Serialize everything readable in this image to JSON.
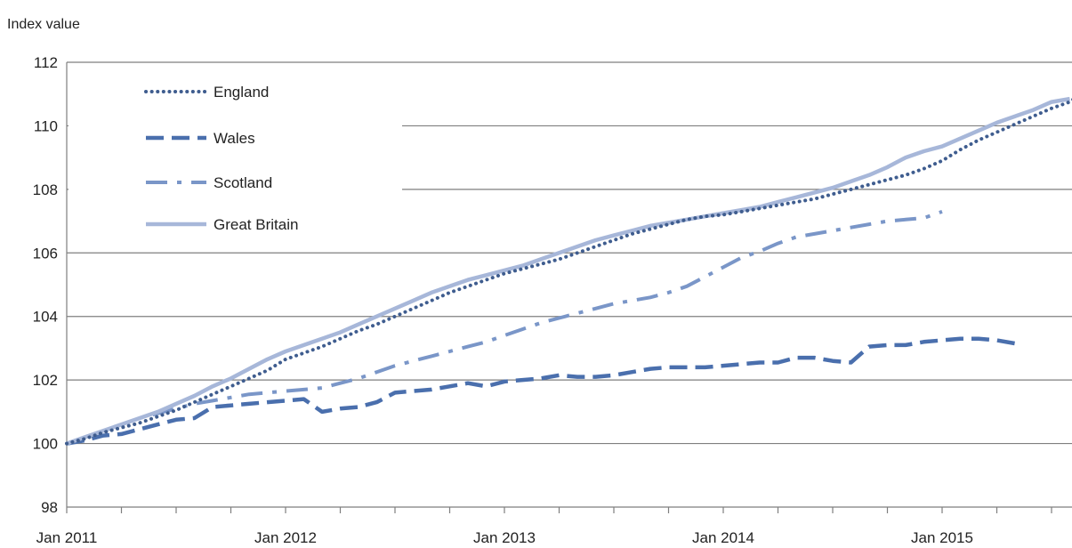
{
  "chart_data": {
    "type": "line",
    "title": "",
    "xlabel": "",
    "ylabel": "Index value",
    "ylim": [
      98,
      112
    ],
    "yticks": [
      98,
      100,
      102,
      104,
      106,
      108,
      110,
      112
    ],
    "x_tick_labels": [
      {
        "label": "Jan 2011",
        "month_index": 0
      },
      {
        "label": "Jan 2012",
        "month_index": 12
      },
      {
        "label": "Jan 2013",
        "month_index": 24
      },
      {
        "label": "Jan 2014",
        "month_index": 36
      },
      {
        "label": "Jan 2015",
        "month_index": 48
      }
    ],
    "x_range_months": [
      0,
      55
    ],
    "grid": "horizontal",
    "legend_position": "top-left",
    "series": [
      {
        "name": "England",
        "style": "dotted",
        "color": "#3f5d8f",
        "values": [
          100.0,
          100.15,
          100.35,
          100.5,
          100.65,
          100.85,
          101.05,
          101.3,
          101.55,
          101.8,
          102.05,
          102.3,
          102.65,
          102.85,
          103.05,
          103.3,
          103.55,
          103.75,
          104.0,
          104.25,
          104.5,
          104.75,
          104.95,
          105.15,
          105.35,
          105.5,
          105.65,
          105.8,
          106.0,
          106.2,
          106.4,
          106.6,
          106.75,
          106.9,
          107.05,
          107.15,
          107.2,
          107.3,
          107.4,
          107.5,
          107.6,
          107.7,
          107.85,
          108.0,
          108.15,
          108.3,
          108.45,
          108.65,
          108.9,
          109.25,
          109.55,
          109.8,
          110.05,
          110.3,
          110.55,
          110.75,
          111.2
        ]
      },
      {
        "name": "Wales",
        "style": "dashed",
        "color": "#4a6fad",
        "values": [
          100.0,
          100.1,
          100.25,
          100.3,
          100.45,
          100.6,
          100.75,
          100.8,
          101.15,
          101.2,
          101.25,
          101.3,
          101.35,
          101.4,
          101.0,
          101.1,
          101.15,
          101.3,
          101.6,
          101.65,
          101.7,
          101.8,
          101.9,
          101.8,
          101.95,
          102.0,
          102.05,
          102.15,
          102.1,
          102.1,
          102.15,
          102.25,
          102.35,
          102.4,
          102.4,
          102.4,
          102.45,
          102.5,
          102.55,
          102.55,
          102.7,
          102.7,
          102.6,
          102.55,
          103.05,
          103.1,
          103.1,
          103.2,
          103.25,
          103.3,
          103.3,
          103.25,
          103.15
        ]
      },
      {
        "name": "Scotland",
        "style": "dash-dot",
        "color": "#7a96c8",
        "values": [
          100.0,
          100.2,
          100.4,
          100.6,
          100.8,
          100.95,
          101.1,
          101.25,
          101.35,
          101.45,
          101.55,
          101.6,
          101.65,
          101.7,
          101.75,
          101.9,
          102.05,
          102.25,
          102.45,
          102.6,
          102.75,
          102.9,
          103.05,
          103.2,
          103.4,
          103.6,
          103.8,
          103.95,
          104.1,
          104.25,
          104.4,
          104.5,
          104.6,
          104.75,
          104.95,
          105.25,
          105.55,
          105.85,
          106.05,
          106.3,
          106.5,
          106.6,
          106.7,
          106.8,
          106.9,
          107.0,
          107.05,
          107.1,
          107.3
        ]
      },
      {
        "name": "Great Britain",
        "style": "solid",
        "color": "#a7b7d9",
        "values": [
          100.0,
          100.2,
          100.4,
          100.6,
          100.8,
          101.0,
          101.25,
          101.5,
          101.8,
          102.05,
          102.35,
          102.65,
          102.9,
          103.1,
          103.3,
          103.5,
          103.75,
          104.0,
          104.25,
          104.5,
          104.75,
          104.95,
          105.15,
          105.3,
          105.45,
          105.6,
          105.8,
          106.0,
          106.2,
          106.4,
          106.55,
          106.7,
          106.85,
          106.95,
          107.05,
          107.15,
          107.25,
          107.35,
          107.45,
          107.6,
          107.75,
          107.9,
          108.05,
          108.25,
          108.45,
          108.7,
          109.0,
          109.2,
          109.35,
          109.6,
          109.85,
          110.1,
          110.3,
          110.5,
          110.75,
          110.85
        ]
      }
    ]
  }
}
